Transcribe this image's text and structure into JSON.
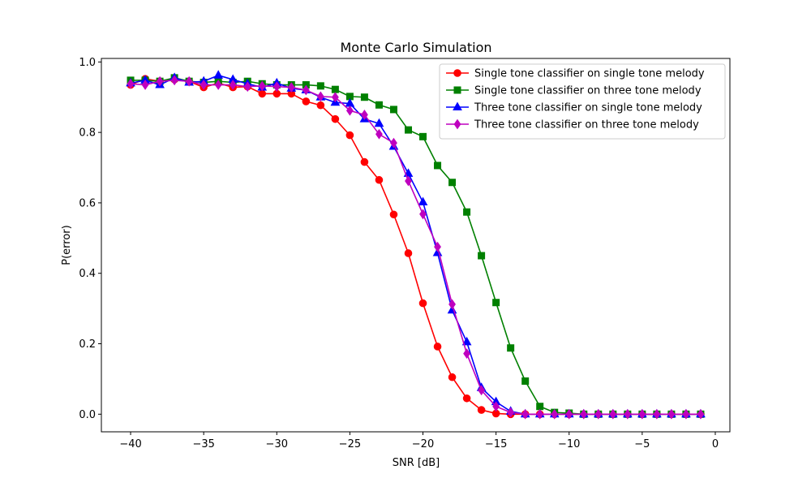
{
  "chart_data": {
    "type": "line",
    "title": "Monte Carlo Simulation",
    "xlabel": "SNR [dB]",
    "ylabel": "P(error)",
    "xlim": [
      -42,
      1
    ],
    "ylim": [
      -0.05,
      1.01
    ],
    "xticks": [
      -40,
      -35,
      -30,
      -25,
      -20,
      -15,
      -10,
      -5,
      0
    ],
    "yticks": [
      0.0,
      0.2,
      0.4,
      0.6,
      0.8,
      1.0
    ],
    "xtick_labels": [
      "−40",
      "−35",
      "−30",
      "−25",
      "−20",
      "−15",
      "−10",
      "−5",
      "0"
    ],
    "ytick_labels": [
      "0.0",
      "0.2",
      "0.4",
      "0.6",
      "0.8",
      "1.0"
    ],
    "grid": false,
    "legend_position": "top-right",
    "x": [
      -40,
      -39,
      -38,
      -37,
      -36,
      -35,
      -34,
      -33,
      -32,
      -31,
      -30,
      -29,
      -28,
      -27,
      -26,
      -25,
      -24,
      -23,
      -22,
      -21,
      -20,
      -19,
      -18,
      -17,
      -16,
      -15,
      -14,
      -13,
      -12,
      -11,
      -10,
      -9,
      -8,
      -7,
      -6,
      -5,
      -4,
      -3,
      -2,
      -1
    ],
    "series": [
      {
        "name": "Single tone classifier on single tone melody",
        "color": "#ff0000",
        "marker": "circle",
        "values": [
          0.935,
          0.952,
          0.945,
          0.95,
          0.945,
          0.928,
          0.94,
          0.928,
          0.93,
          0.91,
          0.91,
          0.91,
          0.888,
          0.877,
          0.838,
          0.792,
          0.716,
          0.665,
          0.567,
          0.457,
          0.315,
          0.192,
          0.105,
          0.045,
          0.012,
          0.002,
          0.0,
          0.0,
          0.0,
          0.0,
          0.0,
          0.0,
          0.0,
          0.0,
          0.0,
          0.0,
          0.0,
          0.0,
          0.0,
          0.0
        ]
      },
      {
        "name": "Single tone classifier on three tone melody",
        "color": "#008000",
        "marker": "square",
        "values": [
          0.948,
          0.948,
          0.945,
          0.955,
          0.945,
          0.942,
          0.945,
          0.942,
          0.945,
          0.938,
          0.935,
          0.935,
          0.935,
          0.932,
          0.922,
          0.902,
          0.9,
          0.878,
          0.865,
          0.807,
          0.788,
          0.706,
          0.658,
          0.574,
          0.45,
          0.317,
          0.188,
          0.094,
          0.022,
          0.005,
          0.003,
          0.0,
          0.0,
          0.0,
          0.0,
          0.0,
          0.0,
          0.0,
          0.0,
          0.0
        ]
      },
      {
        "name": "Three tone classifier on single tone melody",
        "color": "#0000ff",
        "marker": "triangle",
        "values": [
          0.94,
          0.948,
          0.935,
          0.955,
          0.942,
          0.945,
          0.962,
          0.95,
          0.938,
          0.928,
          0.94,
          0.925,
          0.92,
          0.9,
          0.885,
          0.882,
          0.838,
          0.825,
          0.76,
          0.683,
          0.602,
          0.458,
          0.295,
          0.205,
          0.075,
          0.035,
          0.008,
          0.0,
          0.0,
          0.0,
          0.0,
          0.0,
          0.0,
          0.0,
          0.0,
          0.0,
          0.0,
          0.0,
          0.0,
          0.0
        ]
      },
      {
        "name": "Three tone classifier on three tone melody",
        "color": "#bf00bf",
        "marker": "diamond",
        "values": [
          0.938,
          0.935,
          0.945,
          0.948,
          0.945,
          0.935,
          0.935,
          0.935,
          0.93,
          0.932,
          0.93,
          0.928,
          0.92,
          0.902,
          0.9,
          0.862,
          0.85,
          0.795,
          0.77,
          0.662,
          0.568,
          0.475,
          0.312,
          0.172,
          0.068,
          0.022,
          0.005,
          0.0,
          0.0,
          0.0,
          0.0,
          0.0,
          0.0,
          0.0,
          0.0,
          0.0,
          0.0,
          0.0,
          0.0,
          0.0
        ]
      }
    ]
  }
}
